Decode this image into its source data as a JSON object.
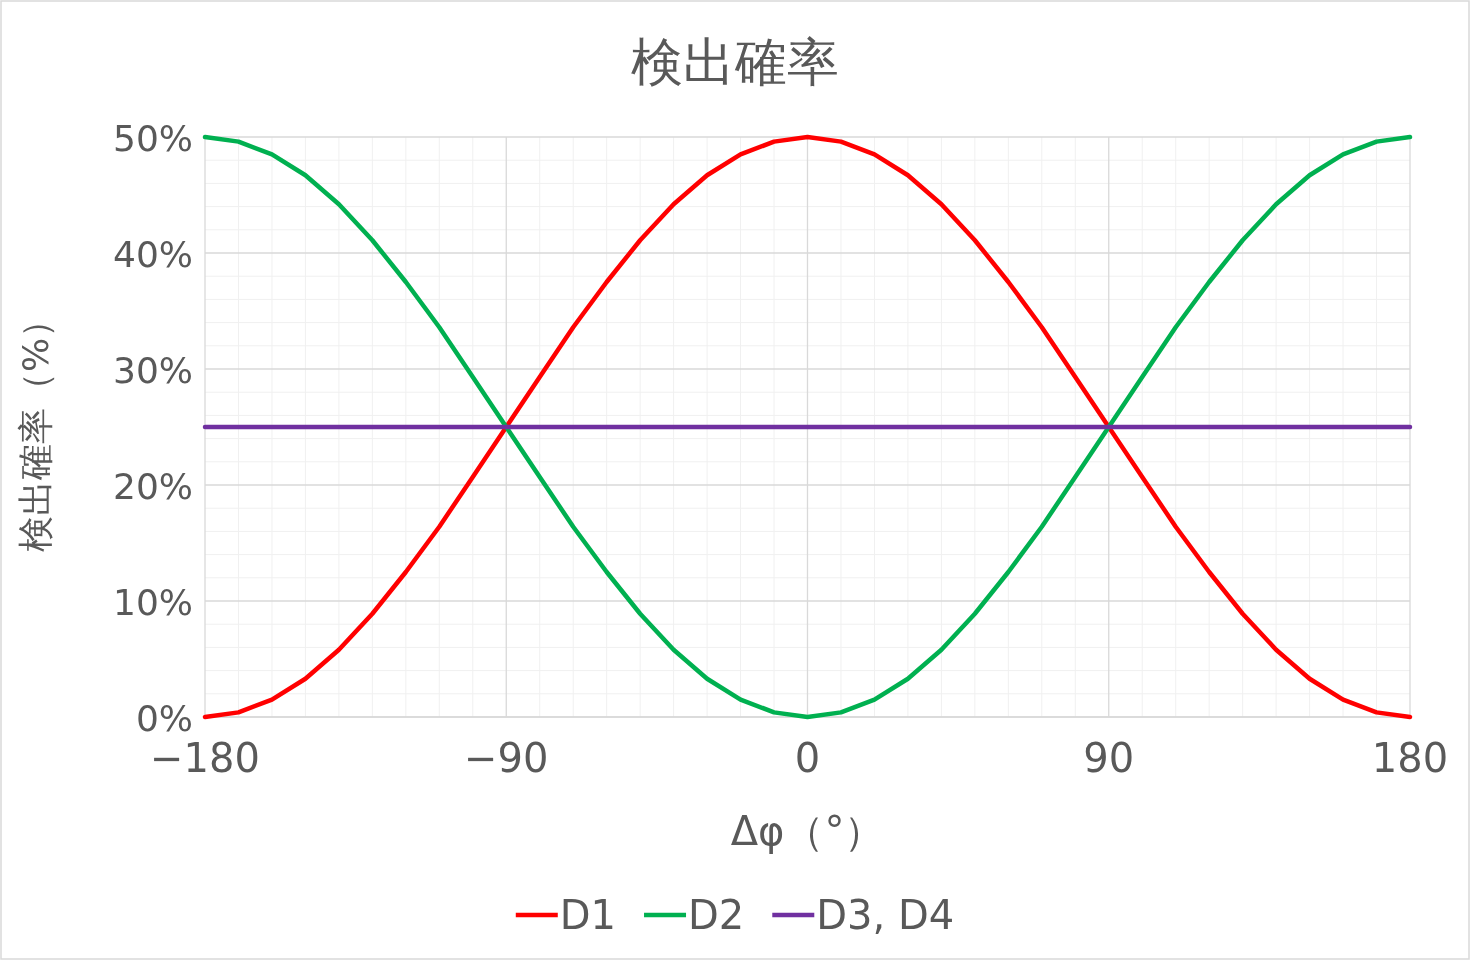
{
  "chart_data": {
    "type": "line",
    "title": "検出確率",
    "xlabel": "Δφ（°）",
    "ylabel": "検出確率（%）",
    "x": [
      -180,
      -170,
      -160,
      -150,
      -140,
      -130,
      -120,
      -110,
      -100,
      -90,
      -80,
      -70,
      -60,
      -50,
      -40,
      -30,
      -20,
      -10,
      0,
      10,
      20,
      30,
      40,
      50,
      60,
      70,
      80,
      90,
      100,
      110,
      120,
      130,
      140,
      150,
      160,
      170,
      180
    ],
    "series": [
      {
        "name": "D1",
        "color": "#ff0000",
        "values": [
          0,
          0.4,
          1.5,
          3.3,
          5.8,
          8.9,
          12.5,
          16.4,
          20.7,
          25,
          29.3,
          33.6,
          37.5,
          41.1,
          44.2,
          46.7,
          48.5,
          49.6,
          50,
          49.6,
          48.5,
          46.7,
          44.2,
          41.1,
          37.5,
          33.6,
          29.3,
          25,
          20.7,
          16.4,
          12.5,
          8.9,
          5.8,
          3.3,
          1.5,
          0.4,
          0
        ]
      },
      {
        "name": "D2",
        "color": "#00b050",
        "values": [
          50,
          49.6,
          48.5,
          46.7,
          44.2,
          41.1,
          37.5,
          33.6,
          29.3,
          25,
          20.7,
          16.4,
          12.5,
          8.9,
          5.8,
          3.3,
          1.5,
          0.4,
          0,
          0.4,
          1.5,
          3.3,
          5.8,
          8.9,
          12.5,
          16.4,
          20.7,
          25,
          29.3,
          33.6,
          37.5,
          41.1,
          44.2,
          46.7,
          48.5,
          49.6,
          50
        ]
      },
      {
        "name": "D3, D4",
        "color": "#7030a0",
        "values": [
          25,
          25,
          25,
          25,
          25,
          25,
          25,
          25,
          25,
          25,
          25,
          25,
          25,
          25,
          25,
          25,
          25,
          25,
          25,
          25,
          25,
          25,
          25,
          25,
          25,
          25,
          25,
          25,
          25,
          25,
          25,
          25,
          25,
          25,
          25,
          25,
          25
        ]
      }
    ],
    "xlim": [
      -180,
      180
    ],
    "xticks": [
      {
        "value": -180,
        "label": "−180"
      },
      {
        "value": -90,
        "label": "−90"
      },
      0,
      90,
      180
    ],
    "ylim": [
      0,
      50
    ],
    "yticks": [
      {
        "value": 0,
        "label": "0%"
      },
      {
        "value": 10,
        "label": "10%"
      },
      {
        "value": 20,
        "label": "20%"
      },
      {
        "value": 30,
        "label": "30%"
      },
      {
        "value": 40,
        "label": "40%"
      },
      {
        "value": 50,
        "label": "50%"
      }
    ],
    "grid": true,
    "legend": "bottom",
    "marker": "none",
    "line_style": "solid"
  }
}
